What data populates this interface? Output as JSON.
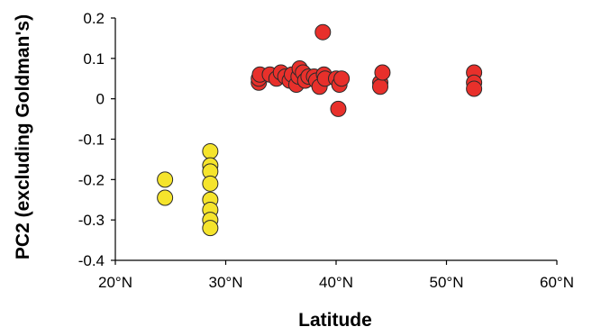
{
  "chart_data": {
    "type": "scatter",
    "xlabel": "Latitude",
    "ylabel": "PC2 (excluding Goldman's)",
    "xlim": [
      20,
      60
    ],
    "ylim": [
      -0.4,
      0.2
    ],
    "x_ticks": [
      {
        "value": 20,
        "label": "20°N"
      },
      {
        "value": 30,
        "label": "30°N"
      },
      {
        "value": 40,
        "label": "40°N"
      },
      {
        "value": 50,
        "label": "50°N"
      },
      {
        "value": 60,
        "label": "60°N"
      }
    ],
    "y_ticks": [
      {
        "value": 0.2,
        "label": "0.2"
      },
      {
        "value": 0.1,
        "label": "0.1"
      },
      {
        "value": 0,
        "label": "0"
      },
      {
        "value": -0.1,
        "label": "-0.1"
      },
      {
        "value": -0.2,
        "label": "-0.2"
      },
      {
        "value": -0.3,
        "label": "-0.3"
      },
      {
        "value": -0.4,
        "label": "-0.4"
      }
    ],
    "grid": false,
    "legend": "none",
    "series": [
      {
        "color": "#f5e42c",
        "points": [
          [
            24.5,
            -0.2
          ],
          [
            24.5,
            -0.245
          ],
          [
            28.6,
            -0.13
          ],
          [
            28.6,
            -0.165
          ],
          [
            28.6,
            -0.18
          ],
          [
            28.6,
            -0.21
          ],
          [
            28.6,
            -0.25
          ],
          [
            28.6,
            -0.275
          ],
          [
            28.6,
            -0.3
          ],
          [
            28.6,
            -0.32
          ]
        ]
      },
      {
        "color": "#e8302b",
        "points": [
          [
            33.0,
            0.04
          ],
          [
            33.0,
            0.05
          ],
          [
            33.1,
            0.06
          ],
          [
            34.0,
            0.06
          ],
          [
            34.6,
            0.05
          ],
          [
            35.0,
            0.065
          ],
          [
            35.4,
            0.055
          ],
          [
            35.8,
            0.045
          ],
          [
            36.0,
            0.06
          ],
          [
            36.4,
            0.035
          ],
          [
            36.6,
            0.055
          ],
          [
            36.7,
            0.075
          ],
          [
            37.0,
            0.065
          ],
          [
            37.2,
            0.045
          ],
          [
            37.5,
            0.055
          ],
          [
            38.0,
            0.055
          ],
          [
            38.2,
            0.045
          ],
          [
            38.5,
            0.03
          ],
          [
            38.8,
            0.165
          ],
          [
            38.9,
            0.06
          ],
          [
            39.0,
            0.05
          ],
          [
            40.0,
            0.05
          ],
          [
            40.2,
            -0.025
          ],
          [
            40.3,
            0.035
          ],
          [
            40.5,
            0.05
          ],
          [
            44.0,
            0.04
          ],
          [
            44.0,
            0.03
          ],
          [
            44.2,
            0.065
          ],
          [
            52.5,
            0.065
          ],
          [
            52.5,
            0.04
          ],
          [
            52.5,
            0.025
          ]
        ]
      }
    ]
  }
}
